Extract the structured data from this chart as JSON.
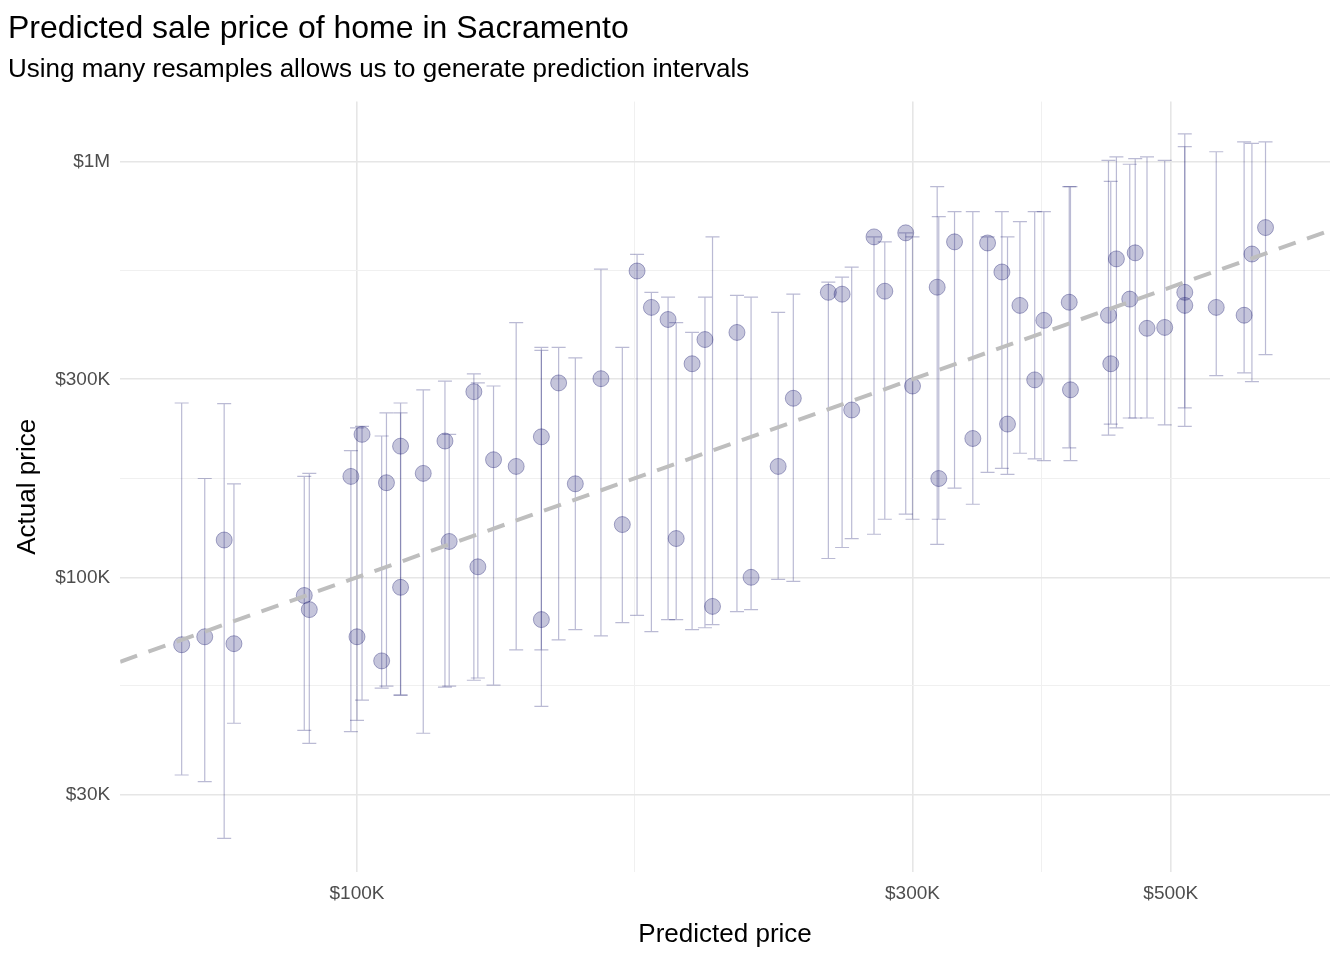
{
  "chart_data": {
    "type": "scatter",
    "title": "Predicted sale price of home in Sacramento",
    "subtitle": "Using many resamples allows us to generate prediction intervals",
    "xlabel": "Predicted price",
    "ylabel": "Actual price",
    "log": "xy",
    "grid": true,
    "legend": false,
    "xlim": [
      62600,
      685000
    ],
    "ylim": [
      19500,
      1400000
    ],
    "xticks": [
      {
        "value": 100000,
        "label": "$100K"
      },
      {
        "value": 173205,
        "label": null
      },
      {
        "value": 300000,
        "label": "$300K"
      },
      {
        "value": 387298,
        "label": null
      },
      {
        "value": 500000,
        "label": "$500K"
      }
    ],
    "yticks": [
      {
        "value": 30000,
        "label": "$30K"
      },
      {
        "value": 54772,
        "label": null
      },
      {
        "value": 100000,
        "label": "$100K"
      },
      {
        "value": 173205,
        "label": null
      },
      {
        "value": 300000,
        "label": "$300K"
      },
      {
        "value": 547723,
        "label": null
      },
      {
        "value": 1000000,
        "label": "$1M"
      }
    ],
    "series": [
      {
        "color": "#191970",
        "marker": "circle",
        "x": [
          70700,
          74000,
          76900,
          78400,
          90100,
          91000,
          98800,
          100000,
          101000,
          105000,
          106000,
          109000,
          109000,
          114000,
          119000,
          120000,
          126000,
          127000,
          131000,
          137000,
          144000,
          144000,
          149000,
          154000,
          162000,
          169000,
          174000,
          179000,
          185000,
          188000,
          194000,
          199000,
          202000,
          212000,
          218000,
          230000,
          237000,
          254000,
          261000,
          266000,
          278000,
          284000,
          296000,
          300000,
          315000,
          316000,
          326000,
          338000,
          348000,
          358000,
          362000,
          371000,
          382000,
          389000,
          409000,
          410000,
          442000,
          444000,
          449000,
          461000,
          466000,
          477000,
          494000,
          514000,
          514000,
          547000,
          578000,
          587000,
          603000
        ],
        "values": [
          68800,
          71900,
          123000,
          69200,
          90400,
          83600,
          175000,
          71900,
          221000,
          62900,
          169000,
          207000,
          94600,
          178000,
          213000,
          122000,
          280000,
          106000,
          192000,
          185000,
          79100,
          218000,
          294000,
          168000,
          301000,
          134000,
          547000,
          447000,
          418000,
          124000,
          327000,
          374000,
          85100,
          389000,
          100000,
          185000,
          270000,
          486000,
          481000,
          253000,
          661000,
          489000,
          676000,
          289000,
          500000,
          173000,
          643000,
          216000,
          639000,
          544000,
          234000,
          452000,
          299000,
          416000,
          460000,
          283000,
          428000,
          327000,
          585000,
          468000,
          605000,
          398000,
          400000,
          486000,
          452000,
          447000,
          428000,
          601000,
          696000
        ],
        "errors": [
          [
            33400,
            263000
          ],
          [
            32200,
            173000
          ],
          [
            23500,
            262000
          ],
          [
            44500,
            168000
          ],
          [
            42800,
            175000
          ],
          [
            39800,
            178000
          ],
          [
            42500,
            202000
          ],
          [
            45200,
            229000
          ],
          [
            50600,
            231000
          ],
          [
            54100,
            219000
          ],
          [
            54700,
            249000
          ],
          [
            52000,
            249000
          ],
          [
            52000,
            263000
          ],
          [
            42100,
            283000
          ],
          [
            54400,
            297000
          ],
          [
            54700,
            221000
          ],
          [
            56500,
            309000
          ],
          [
            57200,
            294000
          ],
          [
            55000,
            289000
          ],
          [
            66900,
            411000
          ],
          [
            66900,
            358000
          ],
          [
            48900,
            352000
          ],
          [
            70700,
            358000
          ],
          [
            74800,
            338000
          ],
          [
            72300,
            553000
          ],
          [
            77800,
            358000
          ],
          [
            81000,
            600000
          ],
          [
            74000,
            486000
          ],
          [
            79100,
            473000
          ],
          [
            79100,
            411000
          ],
          [
            74800,
            389000
          ],
          [
            75600,
            473000
          ],
          [
            76900,
            661000
          ],
          [
            82700,
            478000
          ],
          [
            83600,
            473000
          ],
          [
            98900,
            435000
          ],
          [
            97800,
            481000
          ],
          [
            111000,
            514000
          ],
          [
            118000,
            529000
          ],
          [
            124000,
            559000
          ],
          [
            127000,
            661000
          ],
          [
            138000,
            643000
          ],
          [
            142000,
            676000
          ],
          [
            138000,
            661000
          ],
          [
            120000,
            874000
          ],
          [
            138000,
            740000
          ],
          [
            164000,
            760000
          ],
          [
            150000,
            760000
          ],
          [
            179000,
            661000
          ],
          [
            183000,
            760000
          ],
          [
            177000,
            661000
          ],
          [
            199000,
            719000
          ],
          [
            193000,
            760000
          ],
          [
            191000,
            760000
          ],
          [
            205000,
            874000
          ],
          [
            191000,
            874000
          ],
          [
            220000,
            1010000
          ],
          [
            234000,
            899000
          ],
          [
            229000,
            1030000
          ],
          [
            242000,
            989000
          ],
          [
            242000,
            1020000
          ],
          [
            242000,
            1030000
          ],
          [
            233000,
            1010000
          ],
          [
            256000,
            1090000
          ],
          [
            231000,
            1170000
          ],
          [
            306000,
            1060000
          ],
          [
            311000,
            1120000
          ],
          [
            296000,
            1110000
          ],
          [
            344000,
            1120000
          ]
        ]
      },
      {
        "type": "line",
        "color": "#bebebe",
        "line_style": "dashed",
        "marker": "none",
        "x": [
          62600,
          685000
        ],
        "values": [
          62600,
          685000
        ]
      }
    ]
  }
}
